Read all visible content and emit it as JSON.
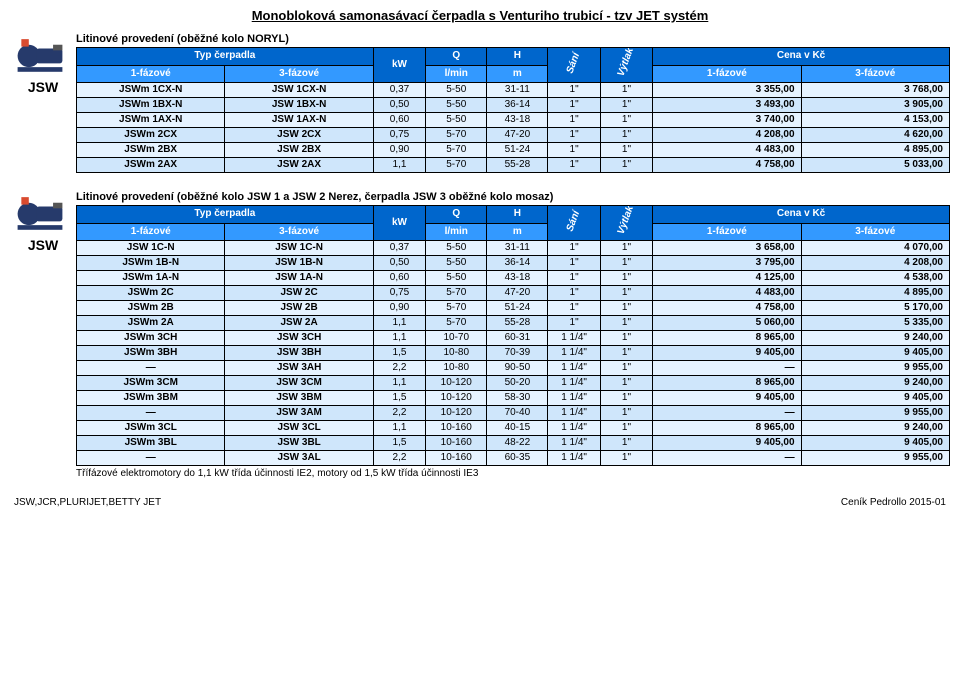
{
  "page": {
    "main_title": "Monobloková samonasávací čerpadla s Venturiho trubicí - tzv JET systém",
    "footer_left": "JSW,JCR,PLURIJET,BETTY JET",
    "footer_right": "Ceník Pedrollo 2015-01"
  },
  "sections": [
    {
      "side_label": "JSW",
      "sub_title": "Litinové provedení (oběžné kolo NORYL)",
      "note": "",
      "header": {
        "typ": "Typ čerpadla",
        "ph1": "1-fázové",
        "ph3": "3-fázové",
        "kw": "kW",
        "q": "Q",
        "q_unit": "l/min",
        "h": "H",
        "h_unit": "m",
        "sani": "Sání",
        "vytlak": "Výtlak",
        "cena": "Cena v Kč"
      },
      "rows": [
        {
          "m1": "JSWm 1CX-N",
          "m3": "JSW 1CX-N",
          "kw": "0,37",
          "q": "5-50",
          "h": "31-11",
          "s": "1\"",
          "v": "1\"",
          "p1": "3 355,00",
          "p3": "3 768,00"
        },
        {
          "m1": "JSWm 1BX-N",
          "m3": "JSW 1BX-N",
          "kw": "0,50",
          "q": "5-50",
          "h": "36-14",
          "s": "1\"",
          "v": "1\"",
          "p1": "3 493,00",
          "p3": "3 905,00"
        },
        {
          "m1": "JSWm 1AX-N",
          "m3": "JSW 1AX-N",
          "kw": "0,60",
          "q": "5-50",
          "h": "43-18",
          "s": "1\"",
          "v": "1\"",
          "p1": "3 740,00",
          "p3": "4 153,00"
        },
        {
          "m1": "JSWm 2CX",
          "m3": "JSW 2CX",
          "kw": "0,75",
          "q": "5-70",
          "h": "47-20",
          "s": "1\"",
          "v": "1\"",
          "p1": "4 208,00",
          "p3": "4 620,00"
        },
        {
          "m1": "JSWm 2BX",
          "m3": "JSW 2BX",
          "kw": "0,90",
          "q": "5-70",
          "h": "51-24",
          "s": "1\"",
          "v": "1\"",
          "p1": "4 483,00",
          "p3": "4 895,00"
        },
        {
          "m1": "JSWm 2AX",
          "m3": "JSW 2AX",
          "kw": "1,1",
          "q": "5-70",
          "h": "55-28",
          "s": "1\"",
          "v": "1\"",
          "p1": "4 758,00",
          "p3": "5 033,00"
        }
      ]
    },
    {
      "side_label": "JSW",
      "sub_title": "Litinové provedení (oběžné kolo JSW 1 a JSW 2 Nerez, čerpadla JSW 3 oběžné kolo mosaz)",
      "note": "Třífázové elektromotory do 1,1 kW třída účinnosti IE2, motory od 1,5 kW třída účinnosti IE3",
      "header": {
        "typ": "Typ čerpadla",
        "ph1": "1-fázové",
        "ph3": "3-fázové",
        "kw": "kW",
        "q": "Q",
        "q_unit": "l/min",
        "h": "H",
        "h_unit": "m",
        "sani": "Sání",
        "vytlak": "Výtlak",
        "cena": "Cena v Kč"
      },
      "rows": [
        {
          "m1": "JSW 1C-N",
          "m3": "JSW 1C-N",
          "kw": "0,37",
          "q": "5-50",
          "h": "31-11",
          "s": "1\"",
          "v": "1\"",
          "p1": "3 658,00",
          "p3": "4 070,00"
        },
        {
          "m1": "JSWm 1B-N",
          "m3": "JSW 1B-N",
          "kw": "0,50",
          "q": "5-50",
          "h": "36-14",
          "s": "1\"",
          "v": "1\"",
          "p1": "3 795,00",
          "p3": "4 208,00"
        },
        {
          "m1": "JSWm 1A-N",
          "m3": "JSW 1A-N",
          "kw": "0,60",
          "q": "5-50",
          "h": "43-18",
          "s": "1\"",
          "v": "1\"",
          "p1": "4 125,00",
          "p3": "4 538,00"
        },
        {
          "m1": "JSWm 2C",
          "m3": "JSW 2C",
          "kw": "0,75",
          "q": "5-70",
          "h": "47-20",
          "s": "1\"",
          "v": "1\"",
          "p1": "4 483,00",
          "p3": "4 895,00"
        },
        {
          "m1": "JSWm 2B",
          "m3": "JSW 2B",
          "kw": "0,90",
          "q": "5-70",
          "h": "51-24",
          "s": "1\"",
          "v": "1\"",
          "p1": "4 758,00",
          "p3": "5 170,00"
        },
        {
          "m1": "JSWm 2A",
          "m3": "JSW 2A",
          "kw": "1,1",
          "q": "5-70",
          "h": "55-28",
          "s": "1\"",
          "v": "1\"",
          "p1": "5 060,00",
          "p3": "5 335,00"
        },
        {
          "m1": "JSWm 3CH",
          "m3": "JSW 3CH",
          "kw": "1,1",
          "q": "10-70",
          "h": "60-31",
          "s": "1 1/4\"",
          "v": "1\"",
          "p1": "8 965,00",
          "p3": "9 240,00"
        },
        {
          "m1": "JSWm 3BH",
          "m3": "JSW 3BH",
          "kw": "1,5",
          "q": "10-80",
          "h": "70-39",
          "s": "1 1/4\"",
          "v": "1\"",
          "p1": "9 405,00",
          "p3": "9 405,00"
        },
        {
          "m1": "—",
          "m3": "JSW 3AH",
          "kw": "2,2",
          "q": "10-80",
          "h": "90-50",
          "s": "1 1/4\"",
          "v": "1\"",
          "p1": "—",
          "p3": "9 955,00"
        },
        {
          "m1": "JSWm 3CM",
          "m3": "JSW 3CM",
          "kw": "1,1",
          "q": "10-120",
          "h": "50-20",
          "s": "1 1/4\"",
          "v": "1\"",
          "p1": "8 965,00",
          "p3": "9 240,00"
        },
        {
          "m1": "JSWm 3BM",
          "m3": "JSW 3BM",
          "kw": "1,5",
          "q": "10-120",
          "h": "58-30",
          "s": "1 1/4\"",
          "v": "1\"",
          "p1": "9 405,00",
          "p3": "9 405,00"
        },
        {
          "m1": "—",
          "m3": "JSW 3AM",
          "kw": "2,2",
          "q": "10-120",
          "h": "70-40",
          "s": "1 1/4\"",
          "v": "1\"",
          "p1": "—",
          "p3": "9 955,00"
        },
        {
          "m1": "JSWm 3CL",
          "m3": "JSW 3CL",
          "kw": "1,1",
          "q": "10-160",
          "h": "40-15",
          "s": "1 1/4\"",
          "v": "1\"",
          "p1": "8 965,00",
          "p3": "9 240,00"
        },
        {
          "m1": "JSWm 3BL",
          "m3": "JSW 3BL",
          "kw": "1,5",
          "q": "10-160",
          "h": "48-22",
          "s": "1 1/4\"",
          "v": "1\"",
          "p1": "9 405,00",
          "p3": "9 405,00"
        },
        {
          "m1": "—",
          "m3": "JSW 3AL",
          "kw": "2,2",
          "q": "10-160",
          "h": "60-35",
          "s": "1 1/4\"",
          "v": "1\"",
          "p1": "—",
          "p3": "9 955,00"
        }
      ]
    }
  ],
  "layout": {
    "col_widths": [
      "17%",
      "17%",
      "6%",
      "7%",
      "7%",
      "6%",
      "6%",
      "17%",
      "17%"
    ],
    "colors": {
      "hdr_blue": "#0066cc",
      "hdr_sub": "#3399ff",
      "row_even": "#e6f3ff",
      "row_odd": "#cfe6fb"
    }
  }
}
